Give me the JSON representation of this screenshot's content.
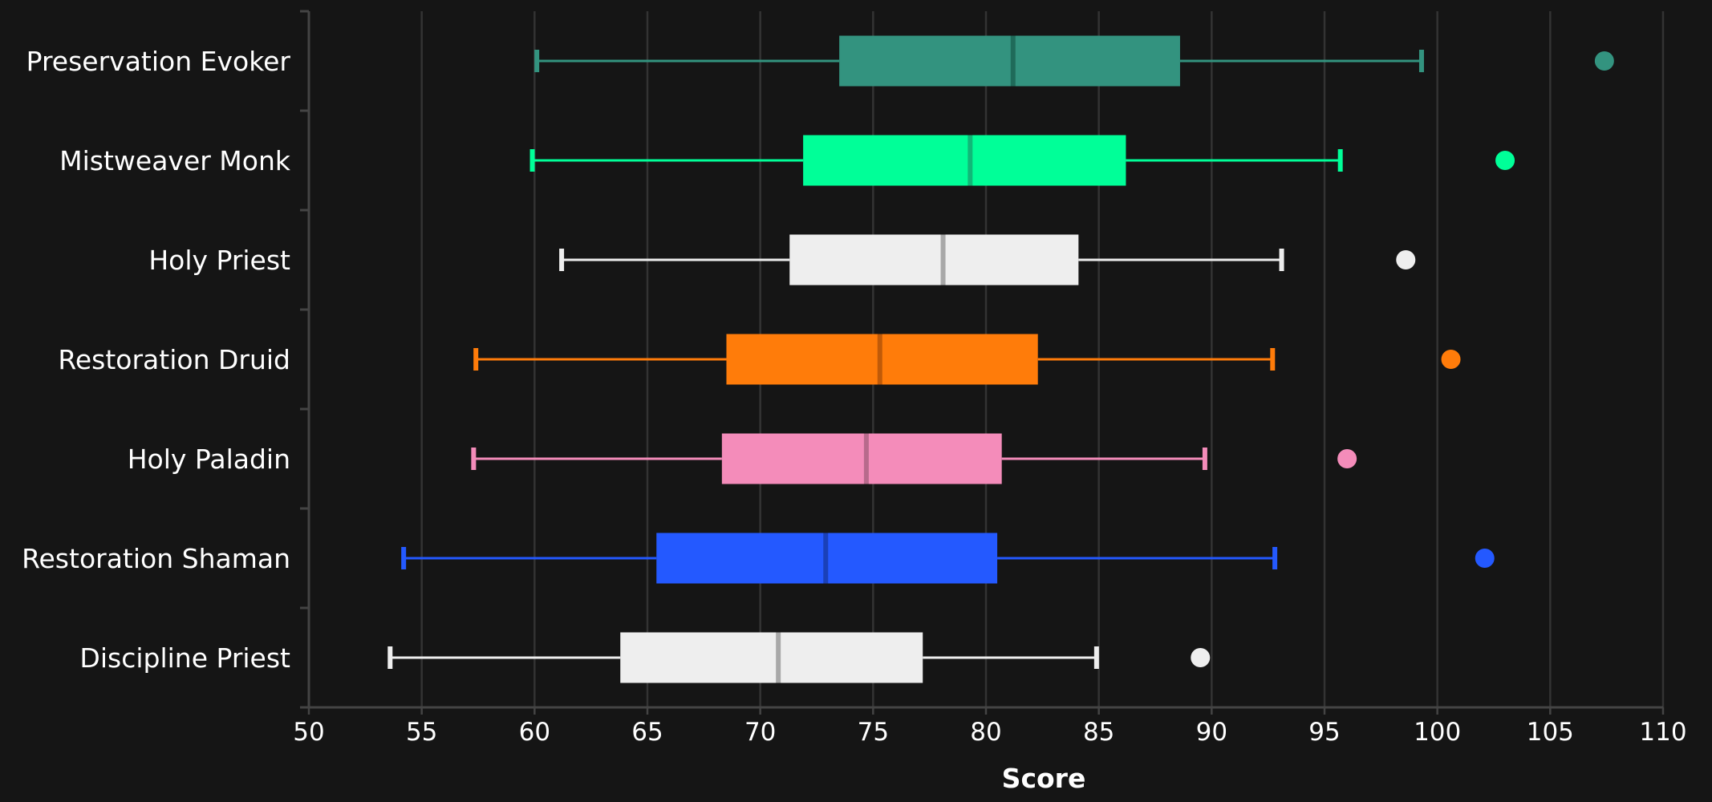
{
  "chart_data": {
    "type": "boxplot",
    "orientation": "horizontal",
    "title": "",
    "xlabel": "Score",
    "ylabel": "",
    "xlim": [
      50,
      110
    ],
    "xticks": [
      50,
      55,
      60,
      65,
      70,
      75,
      80,
      85,
      90,
      95,
      100,
      105,
      110
    ],
    "grid": "vertical",
    "series": [
      {
        "name": "Preservation Evoker",
        "color": "#33937F",
        "median_color": "#1F6B5A",
        "min": 60.1,
        "q1": 73.5,
        "median": 81.2,
        "q3": 88.6,
        "max": 99.3,
        "outliers": [
          107.4
        ]
      },
      {
        "name": "Mistweaver Monk",
        "color": "#00FF98",
        "median_color": "#10B878",
        "min": 59.9,
        "q1": 71.9,
        "median": 79.3,
        "q3": 86.2,
        "max": 95.7,
        "outliers": [
          103.0
        ]
      },
      {
        "name": "Holy Priest",
        "color": "#EEEEEE",
        "median_color": "#A8A8A8",
        "min": 61.2,
        "q1": 71.3,
        "median": 78.1,
        "q3": 84.1,
        "max": 93.1,
        "outliers": [
          98.6
        ]
      },
      {
        "name": "Restoration Druid",
        "color": "#FF7C0A",
        "median_color": "#C05A08",
        "min": 57.4,
        "q1": 68.5,
        "median": 75.3,
        "q3": 82.3,
        "max": 92.7,
        "outliers": [
          100.6
        ]
      },
      {
        "name": "Holy Paladin",
        "color": "#F48CBA",
        "median_color": "#B86A8C",
        "min": 57.3,
        "q1": 68.3,
        "median": 74.7,
        "q3": 80.7,
        "max": 89.7,
        "outliers": [
          96.0
        ]
      },
      {
        "name": "Restoration Shaman",
        "color": "#2459FF",
        "median_color": "#1A40B8",
        "min": 54.2,
        "q1": 65.4,
        "median": 72.9,
        "q3": 80.5,
        "max": 92.8,
        "outliers": [
          102.1
        ]
      },
      {
        "name": "Discipline Priest",
        "color": "#EEEEEE",
        "median_color": "#A8A8A8",
        "min": 53.6,
        "q1": 63.8,
        "median": 70.8,
        "q3": 77.2,
        "max": 84.9,
        "outliers": [
          89.5
        ]
      }
    ]
  }
}
